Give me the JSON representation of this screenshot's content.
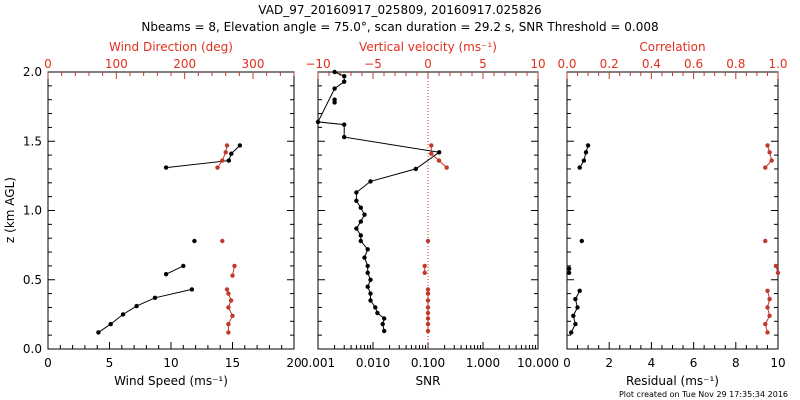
{
  "header": {
    "title": "VAD_97_20160917_025809, 20160917.025826",
    "subtitle": "Nbeams = 8, Elevation angle = 75.0°, scan duration = 29.2 s, SNR Threshold = 0.008"
  },
  "footer": {
    "created": "Plot created on Tue Nov 29 17:35:34 2016"
  },
  "colors": {
    "black": "#000000",
    "red": "#c0392b",
    "red_text": "#e0301e"
  },
  "chart_data": [
    {
      "type": "line",
      "panel": "left",
      "ylabel": "z (km AGL)",
      "ylim": [
        0,
        2
      ],
      "yticks": [
        "0.0",
        "0.5",
        "1.0",
        "1.5",
        "2.0"
      ],
      "bottom_axis": {
        "label": "Wind Speed (ms⁻¹)",
        "range": [
          0,
          20
        ],
        "ticks": [
          "0",
          "5",
          "10",
          "15",
          "20"
        ]
      },
      "top_axis": {
        "label": "Wind Direction (deg)",
        "range": [
          0,
          360
        ],
        "ticks": [
          "0",
          "100",
          "200",
          "300"
        ]
      },
      "series": [
        {
          "axis": "bottom",
          "color": "black",
          "connected": true,
          "segments": [
            [
              [
                4.1,
                0.12
              ],
              [
                5.1,
                0.18
              ],
              [
                6.1,
                0.25
              ],
              [
                7.2,
                0.31
              ],
              [
                8.7,
                0.37
              ],
              [
                11.7,
                0.43
              ]
            ],
            [
              [
                9.6,
                0.54
              ],
              [
                11.0,
                0.6
              ]
            ],
            [
              [
                11.9,
                0.78
              ]
            ],
            [
              [
                9.6,
                1.31
              ],
              [
                14.7,
                1.36
              ],
              [
                14.9,
                1.41
              ],
              [
                15.6,
                1.47
              ]
            ]
          ]
        },
        {
          "axis": "top",
          "color": "red",
          "connected": true,
          "segments": [
            [
              [
                264,
                0.12
              ],
              [
                264,
                0.18
              ],
              [
                270,
                0.24
              ],
              [
                264,
                0.3
              ],
              [
                268,
                0.35
              ],
              [
                264,
                0.4
              ],
              [
                262,
                0.43
              ]
            ],
            [
              [
                270,
                0.53
              ],
              [
                273,
                0.6
              ]
            ],
            [
              [
                255,
                0.78
              ]
            ],
            [
              [
                248,
                1.31
              ],
              [
                255,
                1.36
              ],
              [
                260,
                1.42
              ],
              [
                262,
                1.47
              ]
            ]
          ]
        }
      ]
    },
    {
      "type": "line",
      "panel": "middle",
      "ylim": [
        0,
        2
      ],
      "bottom_axis": {
        "label": "SNR",
        "scale": "log",
        "range": [
          0.001,
          10
        ],
        "ticks": [
          "0.001",
          "0.010",
          "0.100",
          "1.000",
          "10.000"
        ]
      },
      "top_axis": {
        "label": "Vertical velocity (ms⁻¹)",
        "range": [
          -10,
          10
        ],
        "ticks": [
          "−10",
          "−5",
          "0",
          "5",
          "10"
        ]
      },
      "series": [
        {
          "axis": "bottom",
          "color": "black",
          "connected": true,
          "points": [
            [
              0.016,
              0.13
            ],
            [
              0.015,
              0.18
            ],
            [
              0.016,
              0.22
            ],
            [
              0.012,
              0.26
            ],
            [
              0.011,
              0.3
            ],
            [
              0.009,
              0.35
            ],
            [
              0.009,
              0.4
            ],
            [
              0.008,
              0.45
            ],
            [
              0.009,
              0.5
            ],
            [
              0.008,
              0.55
            ],
            [
              0.008,
              0.6
            ],
            [
              0.007,
              0.66
            ],
            [
              0.008,
              0.72
            ],
            [
              0.006,
              0.78
            ],
            [
              0.006,
              0.82
            ],
            [
              0.005,
              0.87
            ],
            [
              0.006,
              0.92
            ],
            [
              0.007,
              0.97
            ],
            [
              0.006,
              1.02
            ],
            [
              0.005,
              1.07
            ],
            [
              0.005,
              1.13
            ],
            [
              0.009,
              1.21
            ],
            [
              0.06,
              1.3
            ],
            [
              0.16,
              1.42
            ],
            [
              0.003,
              1.53
            ],
            [
              0.003,
              1.62
            ],
            [
              0.001,
              1.64
            ],
            [
              0.002,
              1.88
            ],
            [
              0.003,
              1.93
            ],
            [
              0.003,
              1.97
            ],
            [
              0.002,
              2.0
            ]
          ]
        },
        {
          "axis": "bottom",
          "color": "black",
          "connected": true,
          "points": [
            [
              0.002,
              1.78
            ],
            [
              0.002,
              1.8
            ]
          ]
        },
        {
          "axis": "top",
          "color": "red",
          "connected": true,
          "segments": [
            [
              [
                0,
                0.13
              ],
              [
                0,
                0.18
              ],
              [
                0,
                0.22
              ],
              [
                0,
                0.26
              ],
              [
                0,
                0.3
              ],
              [
                0,
                0.35
              ],
              [
                0,
                0.4
              ],
              [
                0,
                0.43
              ]
            ],
            [
              [
                -0.3,
                0.55
              ],
              [
                -0.3,
                0.6
              ]
            ],
            [
              [
                0,
                0.78
              ]
            ],
            [
              [
                1.7,
                1.31
              ],
              [
                1,
                1.36
              ],
              [
                0.3,
                1.41
              ],
              [
                0.3,
                1.47
              ]
            ]
          ]
        }
      ],
      "reference_line": {
        "axis": "top",
        "value": 0,
        "style": "dotted",
        "color": "red"
      }
    },
    {
      "type": "line",
      "panel": "right",
      "ylim": [
        0,
        2
      ],
      "bottom_axis": {
        "label": "Residual (ms⁻¹)",
        "range": [
          0,
          10
        ],
        "ticks": [
          "0",
          "2",
          "4",
          "6",
          "8",
          "10"
        ]
      },
      "top_axis": {
        "label": "Correlation",
        "range": [
          0,
          1
        ],
        "ticks": [
          "0.0",
          "0.2",
          "0.4",
          "0.6",
          "0.8",
          "1.0"
        ]
      },
      "series": [
        {
          "axis": "bottom",
          "color": "black",
          "connected": true,
          "segments": [
            [
              [
                0.2,
                0.12
              ],
              [
                0.4,
                0.18
              ],
              [
                0.3,
                0.24
              ],
              [
                0.5,
                0.3
              ],
              [
                0.4,
                0.36
              ],
              [
                0.6,
                0.42
              ]
            ],
            [
              [
                0.1,
                0.55
              ],
              [
                0.1,
                0.58
              ]
            ],
            [
              [
                0.7,
                0.78
              ]
            ],
            [
              [
                0.6,
                1.31
              ],
              [
                0.8,
                1.36
              ],
              [
                0.9,
                1.42
              ],
              [
                1.0,
                1.47
              ]
            ]
          ]
        },
        {
          "axis": "top",
          "color": "red",
          "connected": true,
          "segments": [
            [
              [
                0.95,
                0.12
              ],
              [
                0.94,
                0.18
              ],
              [
                0.96,
                0.24
              ],
              [
                0.95,
                0.3
              ],
              [
                0.96,
                0.36
              ],
              [
                0.95,
                0.42
              ]
            ],
            [
              [
                1.0,
                0.55
              ],
              [
                0.99,
                0.6
              ]
            ],
            [
              [
                0.94,
                0.78
              ]
            ],
            [
              [
                0.94,
                1.31
              ],
              [
                0.97,
                1.36
              ],
              [
                0.96,
                1.42
              ],
              [
                0.95,
                1.47
              ]
            ]
          ]
        }
      ]
    }
  ]
}
